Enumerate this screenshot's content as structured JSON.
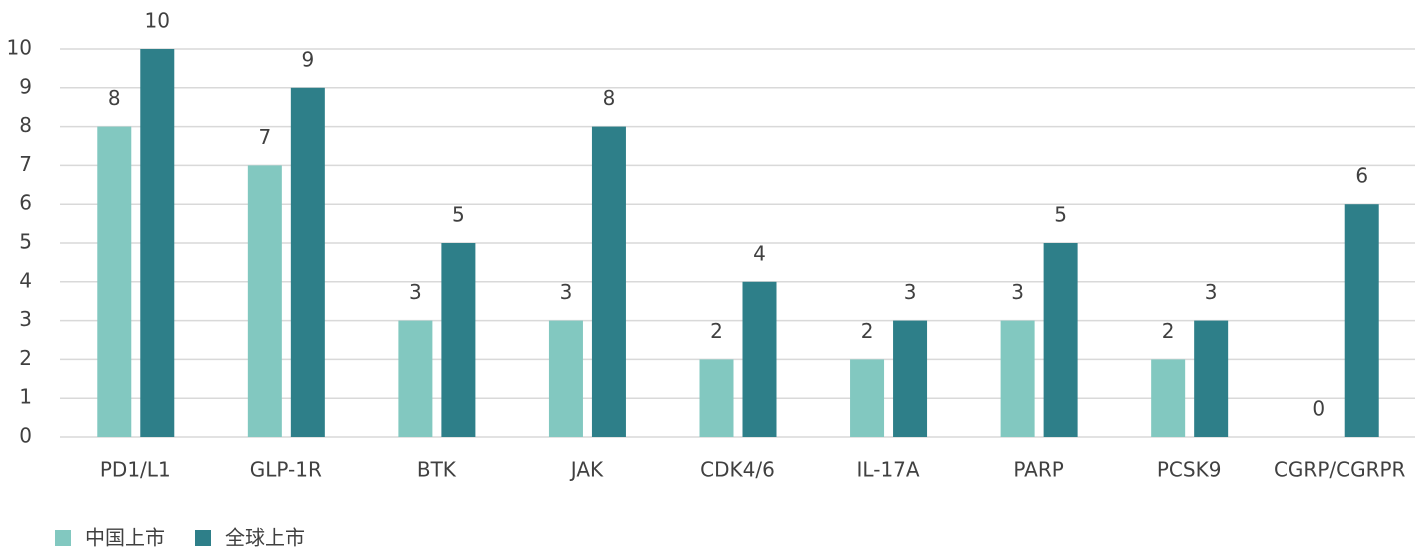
{
  "chart_data": {
    "type": "bar",
    "categories": [
      "PD1/L1",
      "GLP-1R",
      "BTK",
      "JAK",
      "CDK4/6",
      "IL-17A",
      "PARP",
      "PCSK9",
      "CGRP/CGRPR"
    ],
    "series": [
      {
        "name": "中国上市",
        "color": "#82c8c0",
        "values": [
          8,
          7,
          3,
          3,
          2,
          2,
          3,
          2,
          0
        ]
      },
      {
        "name": "全球上市",
        "color": "#2e7f89",
        "values": [
          10,
          9,
          5,
          8,
          4,
          3,
          5,
          3,
          6
        ]
      }
    ],
    "ylim": [
      0,
      10
    ],
    "yticks": [
      0,
      1,
      2,
      3,
      4,
      5,
      6,
      7,
      8,
      9,
      10
    ],
    "grid": true,
    "legend": "bottom-left"
  }
}
